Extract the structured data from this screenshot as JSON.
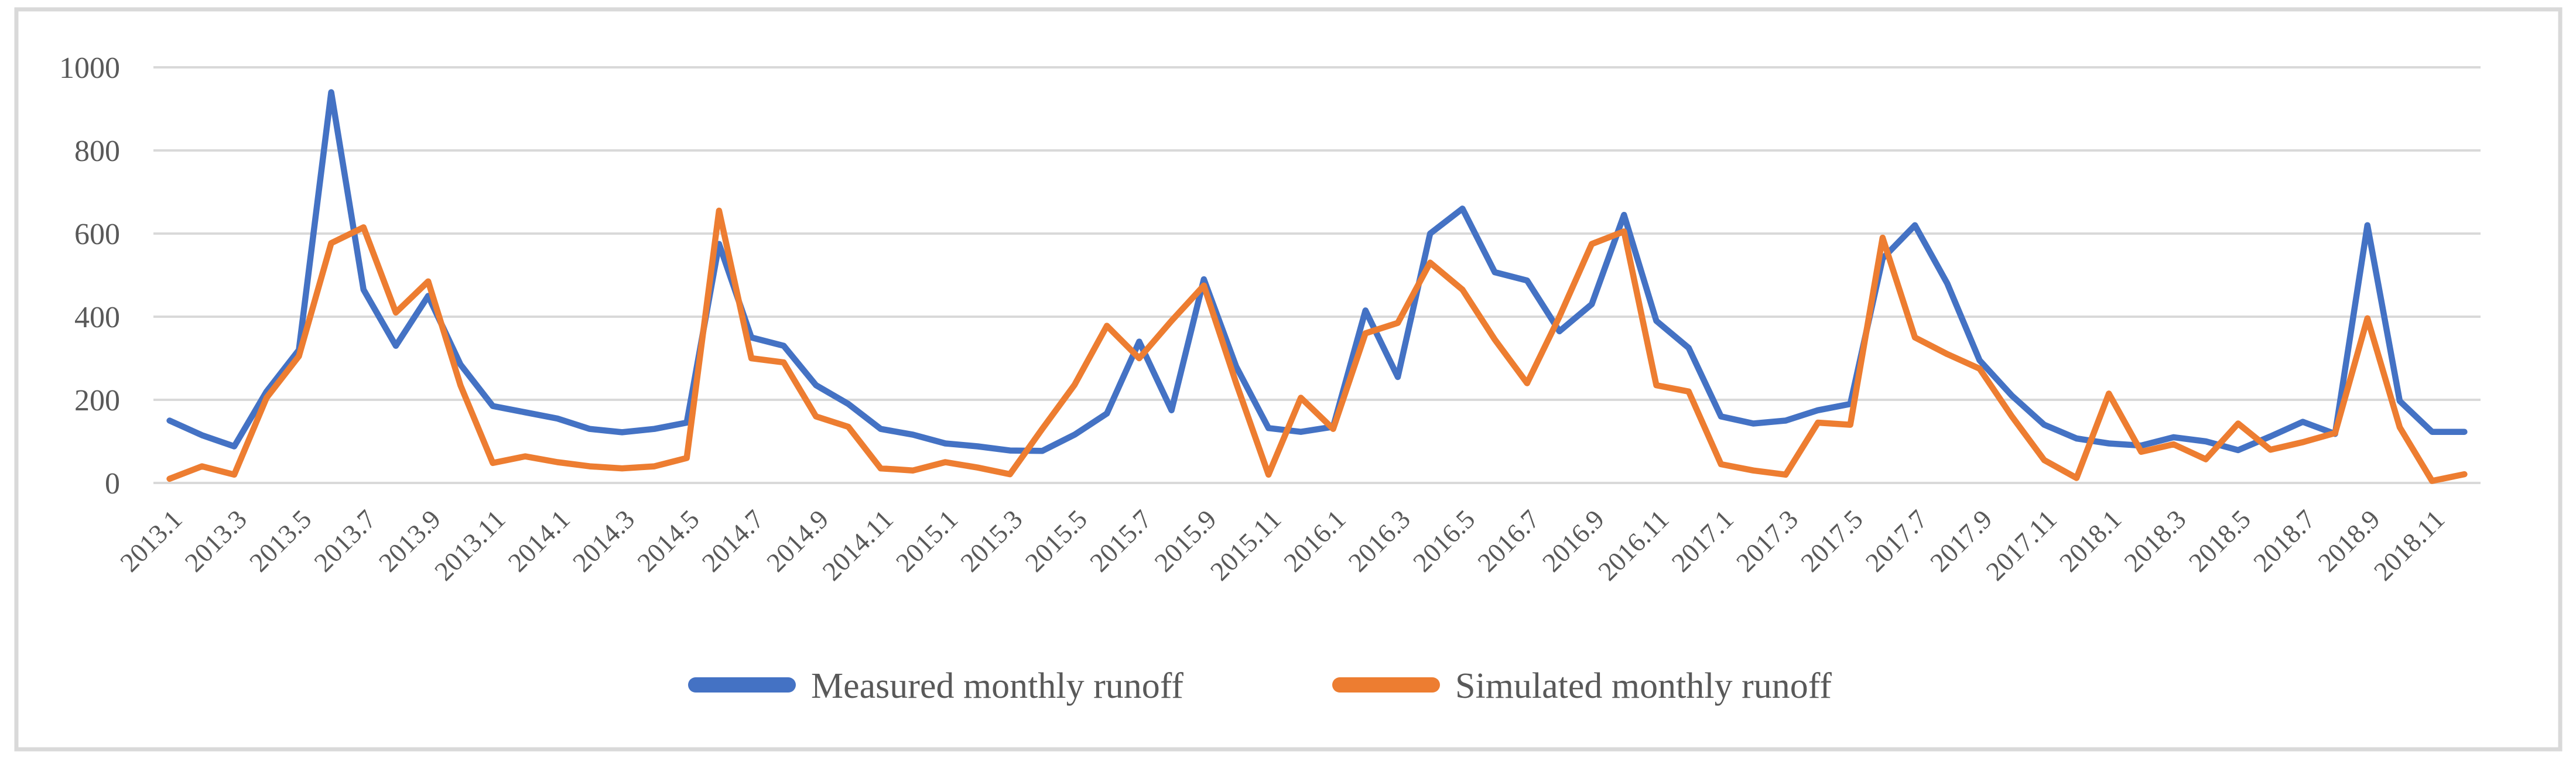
{
  "chart_data": {
    "type": "line",
    "title": "",
    "categories": [
      "2013.1",
      "2013.2",
      "2013.3",
      "2013.4",
      "2013.5",
      "2013.6",
      "2013.7",
      "2013.8",
      "2013.9",
      "2013.10",
      "2013.11",
      "2013.12",
      "2014.1",
      "2014.2",
      "2014.3",
      "2014.4",
      "2014.5",
      "2014.6",
      "2014.7",
      "2014.8",
      "2014.9",
      "2014.10",
      "2014.11",
      "2014.12",
      "2015.1",
      "2015.2",
      "2015.3",
      "2015.4",
      "2015.5",
      "2015.6",
      "2015.7",
      "2015.8",
      "2015.9",
      "2015.10",
      "2015.11",
      "2015.12",
      "2016.1",
      "2016.2",
      "2016.3",
      "2016.4",
      "2016.5",
      "2016.6",
      "2016.7",
      "2016.8",
      "2016.9",
      "2016.10",
      "2016.11",
      "2016.12",
      "2017.1",
      "2017.2",
      "2017.3",
      "2017.4",
      "2017.5",
      "2017.6",
      "2017.7",
      "2017.8",
      "2017.9",
      "2017.10",
      "2017.11",
      "2017.12",
      "2018.1",
      "2018.2",
      "2018.3",
      "2018.4",
      "2018.5",
      "2018.6",
      "2018.7",
      "2018.8",
      "2018.9",
      "2018.10",
      "2018.11",
      "2018.12"
    ],
    "x_tick_step": 2,
    "ylim": [
      0,
      1000
    ],
    "yticks": [
      0,
      200,
      400,
      600,
      800,
      1000
    ],
    "grid": "horizontal",
    "legend_position": "bottom-center",
    "series": [
      {
        "name": "Measured monthly runoff",
        "color": "#4472C4",
        "values": [
          150,
          115,
          88,
          220,
          320,
          940,
          465,
          330,
          450,
          285,
          185,
          170,
          155,
          130,
          122,
          130,
          145,
          575,
          350,
          330,
          235,
          190,
          130,
          116,
          95,
          88,
          78,
          77,
          116,
          167,
          340,
          175,
          490,
          280,
          132,
          123,
          135,
          415,
          255,
          600,
          660,
          507,
          487,
          365,
          430,
          645,
          390,
          325,
          160,
          143,
          150,
          175,
          190,
          540,
          620,
          480,
          295,
          210,
          140,
          107,
          95,
          90,
          110,
          100,
          79,
          112,
          147,
          118,
          620,
          197,
          123,
          123
        ]
      },
      {
        "name": "Simulated monthly runoff",
        "color": "#ED7D31",
        "values": [
          10,
          40,
          20,
          205,
          305,
          577,
          615,
          410,
          485,
          235,
          48,
          64,
          50,
          40,
          35,
          40,
          60,
          655,
          300,
          290,
          160,
          135,
          35,
          30,
          50,
          37,
          21,
          130,
          236,
          378,
          300,
          390,
          475,
          240,
          20,
          205,
          130,
          360,
          385,
          530,
          465,
          345,
          240,
          400,
          575,
          605,
          235,
          220,
          45,
          30,
          20,
          145,
          140,
          590,
          350,
          310,
          275,
          160,
          55,
          12,
          215,
          75,
          93,
          57,
          143,
          80,
          98,
          120,
          396,
          134,
          5,
          21
        ]
      }
    ]
  },
  "styles": {
    "text_color": "#595959",
    "grid_color": "#D9D9D9",
    "border_color": "#D9D9D9",
    "background": "#FFFFFF"
  }
}
